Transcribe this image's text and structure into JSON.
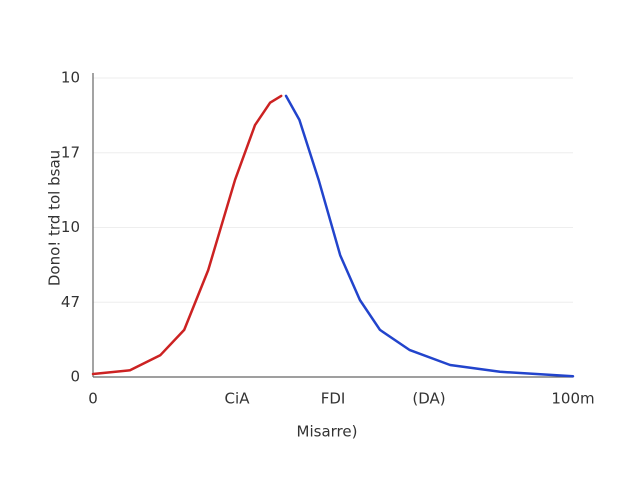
{
  "chart_data": {
    "type": "line",
    "xlabel": "Misarre)",
    "ylabel": "Dono! trd tol bsau",
    "xlim": [
      0,
      100
    ],
    "ylim": [
      0,
      4
    ],
    "xticks": [
      {
        "value": 0,
        "label": "0"
      },
      {
        "value": 30,
        "label": "CiA"
      },
      {
        "value": 50,
        "label": "FDI"
      },
      {
        "value": 70,
        "label": "(DA)"
      },
      {
        "value": 100,
        "label": "100m"
      }
    ],
    "yticks": [
      {
        "value": 0,
        "label": "0"
      },
      {
        "value": 1,
        "label": "47"
      },
      {
        "value": 2,
        "label": "10"
      },
      {
        "value": 3,
        "label": "17"
      },
      {
        "value": 4,
        "label": "10"
      }
    ],
    "grid": true,
    "series": [
      {
        "color": "#cc2222",
        "x": [
          0,
          7.7,
          14,
          19,
          24,
          29.6,
          33.75,
          36.9,
          39.2
        ],
        "values": [
          0.04,
          0.09,
          0.29,
          0.63,
          1.43,
          2.64,
          3.37,
          3.67,
          3.76
        ]
      },
      {
        "color": "#2244cc",
        "x": [
          40.2,
          43,
          47,
          51.5,
          55.6,
          59.8,
          66,
          74.4,
          84.8,
          100
        ],
        "values": [
          3.76,
          3.44,
          2.64,
          1.63,
          1.03,
          0.63,
          0.36,
          0.16,
          0.07,
          0.01
        ]
      }
    ]
  }
}
